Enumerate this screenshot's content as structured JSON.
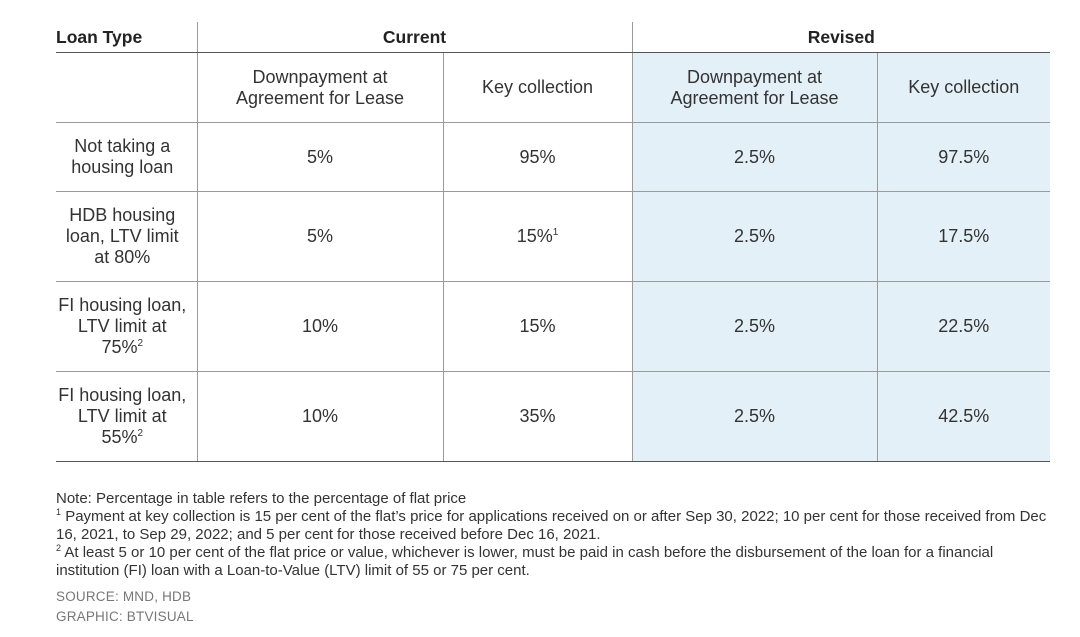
{
  "table": {
    "header_loan_type": "Loan Type",
    "header_current": "Current",
    "header_revised": "Revised",
    "subheaders": {
      "current_downpayment": "Downpayment at Agreement for Lease",
      "current_key": "Key collection",
      "revised_downpayment": "Downpayment at Agreement for Lease",
      "revised_key": "Key collection"
    },
    "rows": [
      {
        "label": "Not taking a housing loan",
        "label_sup": "",
        "cur_down": "5%",
        "cur_key": "95%",
        "cur_key_sup": "",
        "rev_down": "2.5%",
        "rev_key": "97.5%"
      },
      {
        "label": "HDB housing loan, LTV limit at 80%",
        "label_sup": "",
        "cur_down": "5%",
        "cur_key": "15%",
        "cur_key_sup": "1",
        "rev_down": "2.5%",
        "rev_key": "17.5%"
      },
      {
        "label": "FI housing loan, LTV limit at 75%",
        "label_sup": "2",
        "cur_down": "10%",
        "cur_key": "15%",
        "cur_key_sup": "",
        "rev_down": "2.5%",
        "rev_key": "22.5%"
      },
      {
        "label": "FI housing loan, LTV limit at 55%",
        "label_sup": "2",
        "cur_down": "10%",
        "cur_key": "35%",
        "cur_key_sup": "",
        "rev_down": "2.5%",
        "rev_key": "42.5%"
      }
    ]
  },
  "notes": {
    "note": "Note: Percentage in table refers to the percentage of flat price",
    "fn1_marker": "1",
    "fn1": "Payment at key collection is 15 per cent of the flat’s price for applications received on or after Sep 30, 2022; 10 per cent for those received from Dec 16, 2021, to Sep 29, 2022; and 5 per cent for those received before Dec 16, 2021.",
    "fn2_marker": "2",
    "fn2": "At least 5 or 10 per cent of the flat price or value, whichever is lower, must be paid in cash before the disbursement of the loan for a financial institution (FI) loan with a Loan-to-Value (LTV) limit of 55 or 75 per cent."
  },
  "credits": {
    "source": "SOURCE: MND, HDB",
    "graphic": "GRAPHIC: BTVISUAL"
  },
  "colors": {
    "revised_bg": "#e4f0f7",
    "text": "#333333",
    "muted": "#777777"
  }
}
